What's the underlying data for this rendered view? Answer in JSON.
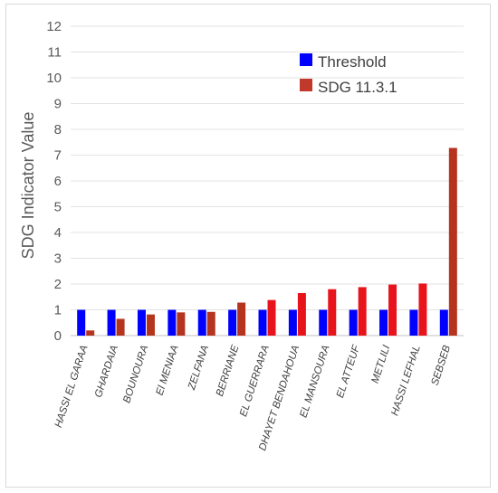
{
  "chart_data": {
    "type": "bar",
    "title": "",
    "xlabel": "",
    "ylabel": "SDG Indicator Value",
    "ylim": [
      0,
      12
    ],
    "yticks": [
      0,
      1,
      2,
      3,
      4,
      5,
      6,
      7,
      8,
      9,
      10,
      11,
      12
    ],
    "grid": true,
    "legend_position": "top-right",
    "categories": [
      "HASSI EL GARAA",
      "GHARDAIA",
      "BOUNOURA",
      "El MENIAA",
      "ZELFANA",
      "BERRIANE",
      "EL GUERRARA",
      "DHAYET BENDAHOUA",
      "EL MANSOURA",
      "EL ATTEUF",
      "METLILI",
      "HASSI LEFHAL",
      "SEBSEB"
    ],
    "series": [
      {
        "name": "Threshold",
        "color": "#0000ff",
        "values": [
          1,
          1,
          1,
          1,
          1,
          1,
          1,
          1,
          1,
          1,
          1,
          1,
          1
        ]
      },
      {
        "name": "SDG 11.3.1",
        "color": "#c0392b",
        "values": [
          0.2,
          0.65,
          0.82,
          0.9,
          0.92,
          1.28,
          1.38,
          1.65,
          1.8,
          1.88,
          1.98,
          2.02,
          7.28
        ]
      }
    ]
  }
}
